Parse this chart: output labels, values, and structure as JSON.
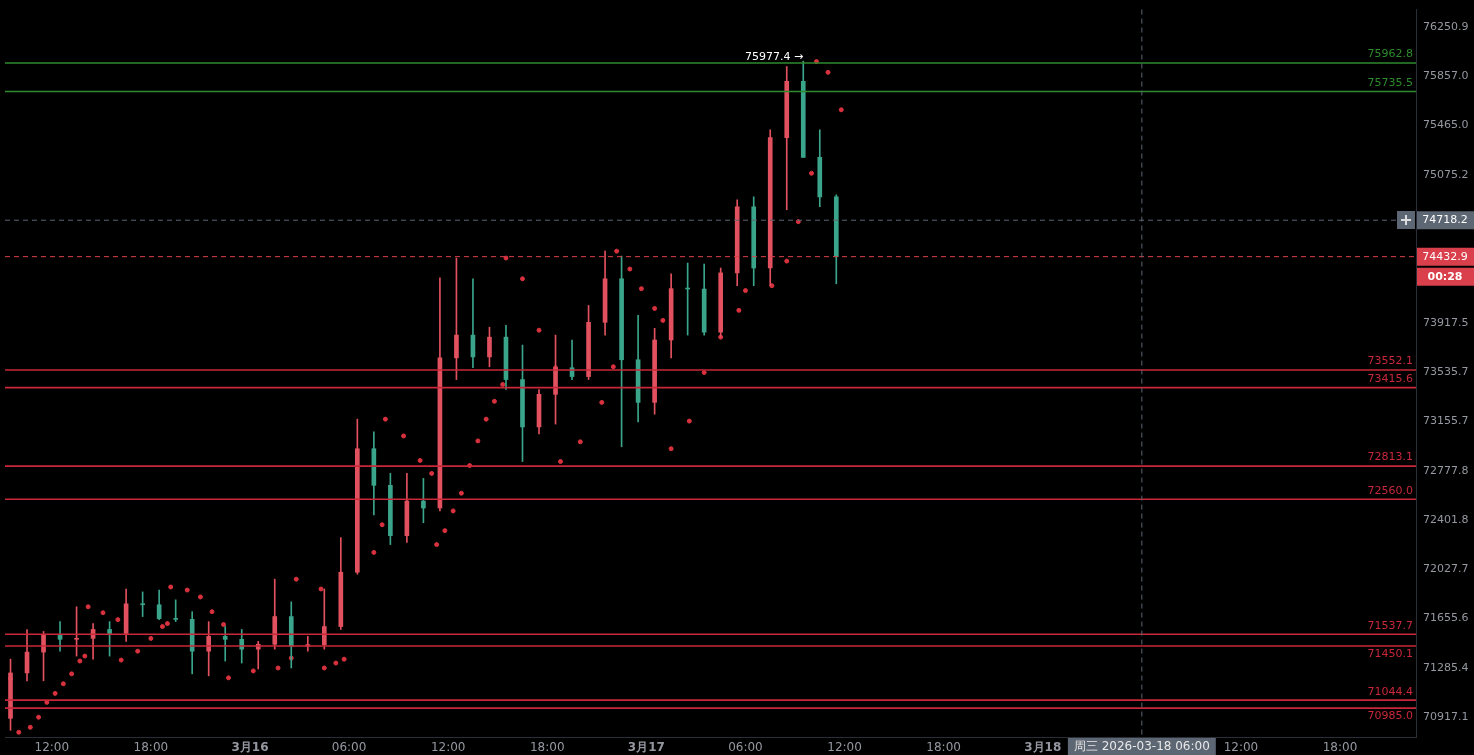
{
  "chart_data": {
    "type": "candlestick",
    "x": [
      "2026-03-15T09:30",
      "2026-03-15T10:30",
      "2026-03-15T11:30",
      "2026-03-15T12:30",
      "2026-03-15T13:30",
      "2026-03-15T14:30",
      "2026-03-15T15:30",
      "2026-03-15T16:30",
      "2026-03-15T17:30",
      "2026-03-15T18:30",
      "2026-03-15T19:30",
      "2026-03-15T20:30",
      "2026-03-15T21:30",
      "2026-03-15T22:30",
      "2026-03-15T23:30",
      "2026-03-16T00:30",
      "2026-03-16T01:30",
      "2026-03-16T02:30",
      "2026-03-16T03:30",
      "2026-03-16T04:30",
      "2026-03-16T05:30",
      "2026-03-16T06:30",
      "2026-03-16T07:30",
      "2026-03-16T08:30",
      "2026-03-16T09:30",
      "2026-03-16T10:30",
      "2026-03-16T11:30",
      "2026-03-16T12:30",
      "2026-03-16T13:30",
      "2026-03-16T14:30",
      "2026-03-16T15:30",
      "2026-03-16T16:30",
      "2026-03-16T17:30",
      "2026-03-16T18:30",
      "2026-03-16T19:30",
      "2026-03-16T20:30",
      "2026-03-16T21:30",
      "2026-03-16T22:30",
      "2026-03-16T23:30",
      "2026-03-17T00:30",
      "2026-03-17T01:30",
      "2026-03-17T02:30",
      "2026-03-17T03:30",
      "2026-03-17T04:30",
      "2026-03-17T05:30",
      "2026-03-17T06:30",
      "2026-03-17T07:30",
      "2026-03-17T08:30",
      "2026-03-17T09:30",
      "2026-03-17T10:30",
      "2026-03-17T11:30"
    ],
    "ohlc": [
      [
        70909,
        71351,
        70820,
        71248
      ],
      [
        71248,
        71574,
        71189,
        71404
      ],
      [
        71404,
        71559,
        71189,
        71537
      ],
      [
        71537,
        71633,
        71411,
        71500
      ],
      [
        71500,
        71745,
        71374,
        71507
      ],
      [
        71507,
        71618,
        71351,
        71574
      ],
      [
        71574,
        71633,
        71374,
        71544
      ],
      [
        71544,
        71879,
        71485,
        71767
      ],
      [
        71767,
        71857,
        71671,
        71760
      ],
      [
        71760,
        71871,
        71648,
        71656
      ],
      [
        71656,
        71797,
        71633,
        71650
      ],
      [
        71650,
        71708,
        71241,
        71411
      ],
      [
        71411,
        71633,
        71226,
        71522
      ],
      [
        71522,
        71596,
        71337,
        71500
      ],
      [
        71500,
        71574,
        71322,
        71426
      ],
      [
        71426,
        71485,
        71278,
        71463
      ],
      [
        71463,
        71953,
        71426,
        71671
      ],
      [
        71671,
        71782,
        71285,
        71448
      ],
      [
        71448,
        71522,
        71411,
        71460
      ],
      [
        71460,
        71879,
        71426,
        71596
      ],
      [
        71596,
        72268,
        71574,
        72006
      ],
      [
        72006,
        73173,
        71991,
        72946
      ],
      [
        72946,
        73075,
        72441,
        72666
      ],
      [
        72666,
        72757,
        72215,
        72283
      ],
      [
        72283,
        72757,
        72231,
        72546
      ],
      [
        72546,
        72719,
        72381,
        72493
      ],
      [
        72493,
        74267,
        72471,
        73646
      ],
      [
        73646,
        74422,
        73478,
        73822
      ],
      [
        73822,
        74260,
        73569,
        73653
      ],
      [
        73653,
        73883,
        73577,
        73806
      ],
      [
        73806,
        73898,
        73402,
        73478
      ],
      [
        73478,
        73745,
        72848,
        73113
      ],
      [
        73113,
        73400,
        73060,
        73364
      ],
      [
        73364,
        73822,
        73135,
        73569
      ],
      [
        73569,
        73784,
        73478,
        73501
      ],
      [
        73501,
        74052,
        73478,
        73921
      ],
      [
        73921,
        74476,
        73822,
        74260
      ],
      [
        74260,
        74437,
        72961,
        73631
      ],
      [
        73631,
        73975,
        73151,
        73302
      ],
      [
        73302,
        73875,
        73211,
        73784
      ],
      [
        73784,
        74298,
        73646,
        74183
      ],
      [
        74183,
        74383,
        73822,
        74180
      ],
      [
        74180,
        74375,
        73822,
        73845
      ],
      [
        73845,
        74344,
        73806,
        74306
      ],
      [
        74306,
        74879,
        74206,
        74824
      ],
      [
        74824,
        74902,
        74206,
        74344
      ],
      [
        74344,
        75432,
        74206,
        75370
      ],
      [
        75370,
        75935,
        74801,
        75817
      ],
      [
        75817,
        75977.4,
        75213,
        75213
      ],
      [
        75213,
        75432,
        74824,
        74902
      ],
      [
        74902,
        74917,
        74221,
        74432.9
      ]
    ],
    "colors": [
      "#e2515f",
      "#e2515f",
      "#e2515f",
      "#3aa58b",
      "#e2515f",
      "#e2515f",
      "#3aa58b",
      "#e2515f",
      "#3aa58b",
      "#3aa58b",
      "#3aa58b",
      "#3aa58b",
      "#e2515f",
      "#3aa58b",
      "#3aa58b",
      "#e2515f",
      "#e2515f",
      "#3aa58b",
      "#e2515f",
      "#e2515f",
      "#e2515f",
      "#e2515f",
      "#3aa58b",
      "#3aa58b",
      "#e2515f",
      "#3aa58b",
      "#e2515f",
      "#e2515f",
      "#3aa58b",
      "#e2515f",
      "#3aa58b",
      "#3aa58b",
      "#e2515f",
      "#e2515f",
      "#3aa58b",
      "#e2515f",
      "#e2515f",
      "#3aa58b",
      "#3aa58b",
      "#e2515f",
      "#e2515f",
      "#3aa58b",
      "#3aa58b",
      "#e2515f",
      "#e2515f",
      "#3aa58b",
      "#e2515f",
      "#e2515f",
      "#3aa58b",
      "#3aa58b",
      "#3aa58b"
    ],
    "series": [
      {
        "type": "scatter",
        "color": "#d9323f",
        "marker": "circle",
        "x": [
          "2026-03-15T09:30",
          "2026-03-15T10:00",
          "2026-03-15T10:42",
          "2026-03-15T11:12",
          "2026-03-15T11:42",
          "2026-03-15T12:12",
          "2026-03-15T12:42",
          "2026-03-15T13:12",
          "2026-03-15T13:42",
          "2026-03-15T14:00",
          "2026-03-15T14:12",
          "2026-03-15T15:06",
          "2026-03-15T16:00",
          "2026-03-15T16:12",
          "2026-03-15T17:12",
          "2026-03-15T18:00",
          "2026-03-15T18:42",
          "2026-03-15T19:00",
          "2026-03-15T19:12",
          "2026-03-15T20:12",
          "2026-03-15T21:00",
          "2026-03-15T21:42",
          "2026-03-15T22:24",
          "2026-03-15T22:42",
          "2026-03-16T00:12",
          "2026-03-16T01:42",
          "2026-03-16T02:30",
          "2026-03-16T02:48",
          "2026-03-16T04:18",
          "2026-03-16T04:30",
          "2026-03-16T05:12",
          "2026-03-16T05:42",
          "2026-03-16T07:30",
          "2026-03-16T08:00",
          "2026-03-16T08:12",
          "2026-03-16T09:18",
          "2026-03-16T10:18",
          "2026-03-16T11:00",
          "2026-03-16T11:18",
          "2026-03-16T11:48",
          "2026-03-16T12:18",
          "2026-03-16T12:48",
          "2026-03-16T13:18",
          "2026-03-16T13:48",
          "2026-03-16T14:18",
          "2026-03-16T14:48",
          "2026-03-16T15:18",
          "2026-03-16T15:30",
          "2026-03-16T16:30",
          "2026-03-16T17:30",
          "2026-03-16T18:30",
          "2026-03-16T18:48",
          "2026-03-16T20:00",
          "2026-03-16T21:18",
          "2026-03-16T22:00",
          "2026-03-16T22:12",
          "2026-03-16T23:00",
          "2026-03-16T23:42",
          "2026-03-17T00:30",
          "2026-03-17T01:00",
          "2026-03-17T01:30",
          "2026-03-17T02:36",
          "2026-03-17T03:30",
          "2026-03-17T04:30",
          "2026-03-17T05:36",
          "2026-03-17T06:00",
          "2026-03-17T07:36",
          "2026-03-17T08:30",
          "2026-03-17T09:12",
          "2026-03-17T10:00",
          "2026-03-17T10:18",
          "2026-03-17T11:00",
          "2026-03-17T11:48"
        ],
        "values": [
          71204,
          70805,
          70842,
          70917,
          71028,
          71095,
          71167,
          71241,
          71337,
          71374,
          71745,
          71700,
          71648,
          71344,
          71411,
          71507,
          71596,
          71618,
          71894,
          71871,
          71819,
          71708,
          71611,
          71211,
          71263,
          71285,
          71359,
          71953,
          71879,
          71285,
          71322,
          71351,
          72156,
          72366,
          73173,
          73044,
          72856,
          72757,
          72215,
          72321,
          72471,
          72606,
          72817,
          73006,
          73173,
          73310,
          73440,
          74422,
          74260,
          73860,
          73569,
          72848,
          72999,
          73302,
          73577,
          74476,
          74336,
          74183,
          74029,
          73936,
          72946,
          73158,
          73532,
          73806,
          74014,
          74168,
          74206,
          74398,
          74707,
          75088,
          75974,
          75888,
          75590
        ]
      }
    ],
    "xlim": [
      "2026-03-15T09:10",
      "2026-03-18T22:36"
    ],
    "xticks": [
      {
        "value": "2026-03-15T12:00",
        "label": "12:00"
      },
      {
        "value": "2026-03-15T18:00",
        "label": "18:00"
      },
      {
        "value": "2026-03-16",
        "label": "3月16"
      },
      {
        "value": "2026-03-16T06:00",
        "label": "06:00"
      },
      {
        "value": "2026-03-16T12:00",
        "label": "12:00"
      },
      {
        "value": "2026-03-16T18:00",
        "label": "18:00"
      },
      {
        "value": "2026-03-17",
        "label": "3月17"
      },
      {
        "value": "2026-03-17T06:00",
        "label": "06:00"
      },
      {
        "value": "2026-03-17T12:00",
        "label": "12:00"
      },
      {
        "value": "2026-03-17T18:00",
        "label": "18:00"
      },
      {
        "value": "2026-03-18",
        "label": "3月18"
      },
      {
        "value": "2026-03-18T12:00",
        "label": "12:00"
      },
      {
        "value": "2026-03-18T18:00",
        "label": "18:00"
      }
    ],
    "ylim": [
      70770,
      76390
    ],
    "yticks": [
      70917.1,
      71285.4,
      71655.6,
      72027.7,
      72401.8,
      72777.8,
      73155.7,
      73535.7,
      73917.5,
      75075.2,
      {
        "value": 75465,
        "label": "75465.0"
      },
      {
        "value": 75857,
        "label": "75857.0"
      },
      76250.9
    ],
    "log": true,
    "grid": false,
    "legend": false,
    "ref_lines": [
      {
        "axis": "y",
        "value": 75962.8,
        "label": "75962.8",
        "color": "#2e8b2e",
        "line_style": "solid"
      },
      {
        "axis": "y",
        "value": 75735.5,
        "label": "75735.5",
        "color": "#2e8b2e",
        "line_style": "solid"
      },
      {
        "axis": "y",
        "value": 73552.1,
        "label": "73552.1",
        "color": "#c8283a",
        "line_style": "solid"
      },
      {
        "axis": "y",
        "value": 73415.6,
        "label": "73415.6",
        "color": "#c8283a",
        "line_style": "solid"
      },
      {
        "axis": "y",
        "value": 72813.1,
        "label": "72813.1",
        "color": "#c8283a",
        "line_style": "solid"
      },
      {
        "axis": "y",
        "value": 72560,
        "label": "72560.0",
        "color": "#c8283a",
        "line_style": "solid"
      },
      {
        "axis": "y",
        "value": 71537.7,
        "label": "71537.7",
        "color": "#c8283a",
        "line_style": "solid"
      },
      {
        "axis": "y",
        "value": 71450.1,
        "label": "71450.1",
        "color": "#c8283a",
        "line_style": "solid"
      },
      {
        "axis": "y",
        "value": 71044.4,
        "label": "71044.4",
        "color": "#c8283a",
        "line_style": "solid"
      },
      {
        "axis": "y",
        "value": 70985,
        "label": "70985.0",
        "color": "#c8283a",
        "line_style": "solid"
      },
      {
        "axis": "y",
        "value": 74718.2,
        "label": "74718.2",
        "color": "#5d6673",
        "line_style": "dashed"
      },
      {
        "axis": "y",
        "value": 74432.9,
        "label": "74432.9",
        "color": "#d9404c",
        "line_style": "dashed"
      },
      {
        "axis": "x",
        "value": "2026-03-18T06:00",
        "label": "周三 2026-03-18 06:00",
        "color": "#5d6673",
        "line_style": "dashed"
      }
    ],
    "annotations": [
      {
        "text": "75977.4 →",
        "x": "2026-03-17T09:30",
        "y": 75977.4
      },
      "00:28"
    ]
  }
}
